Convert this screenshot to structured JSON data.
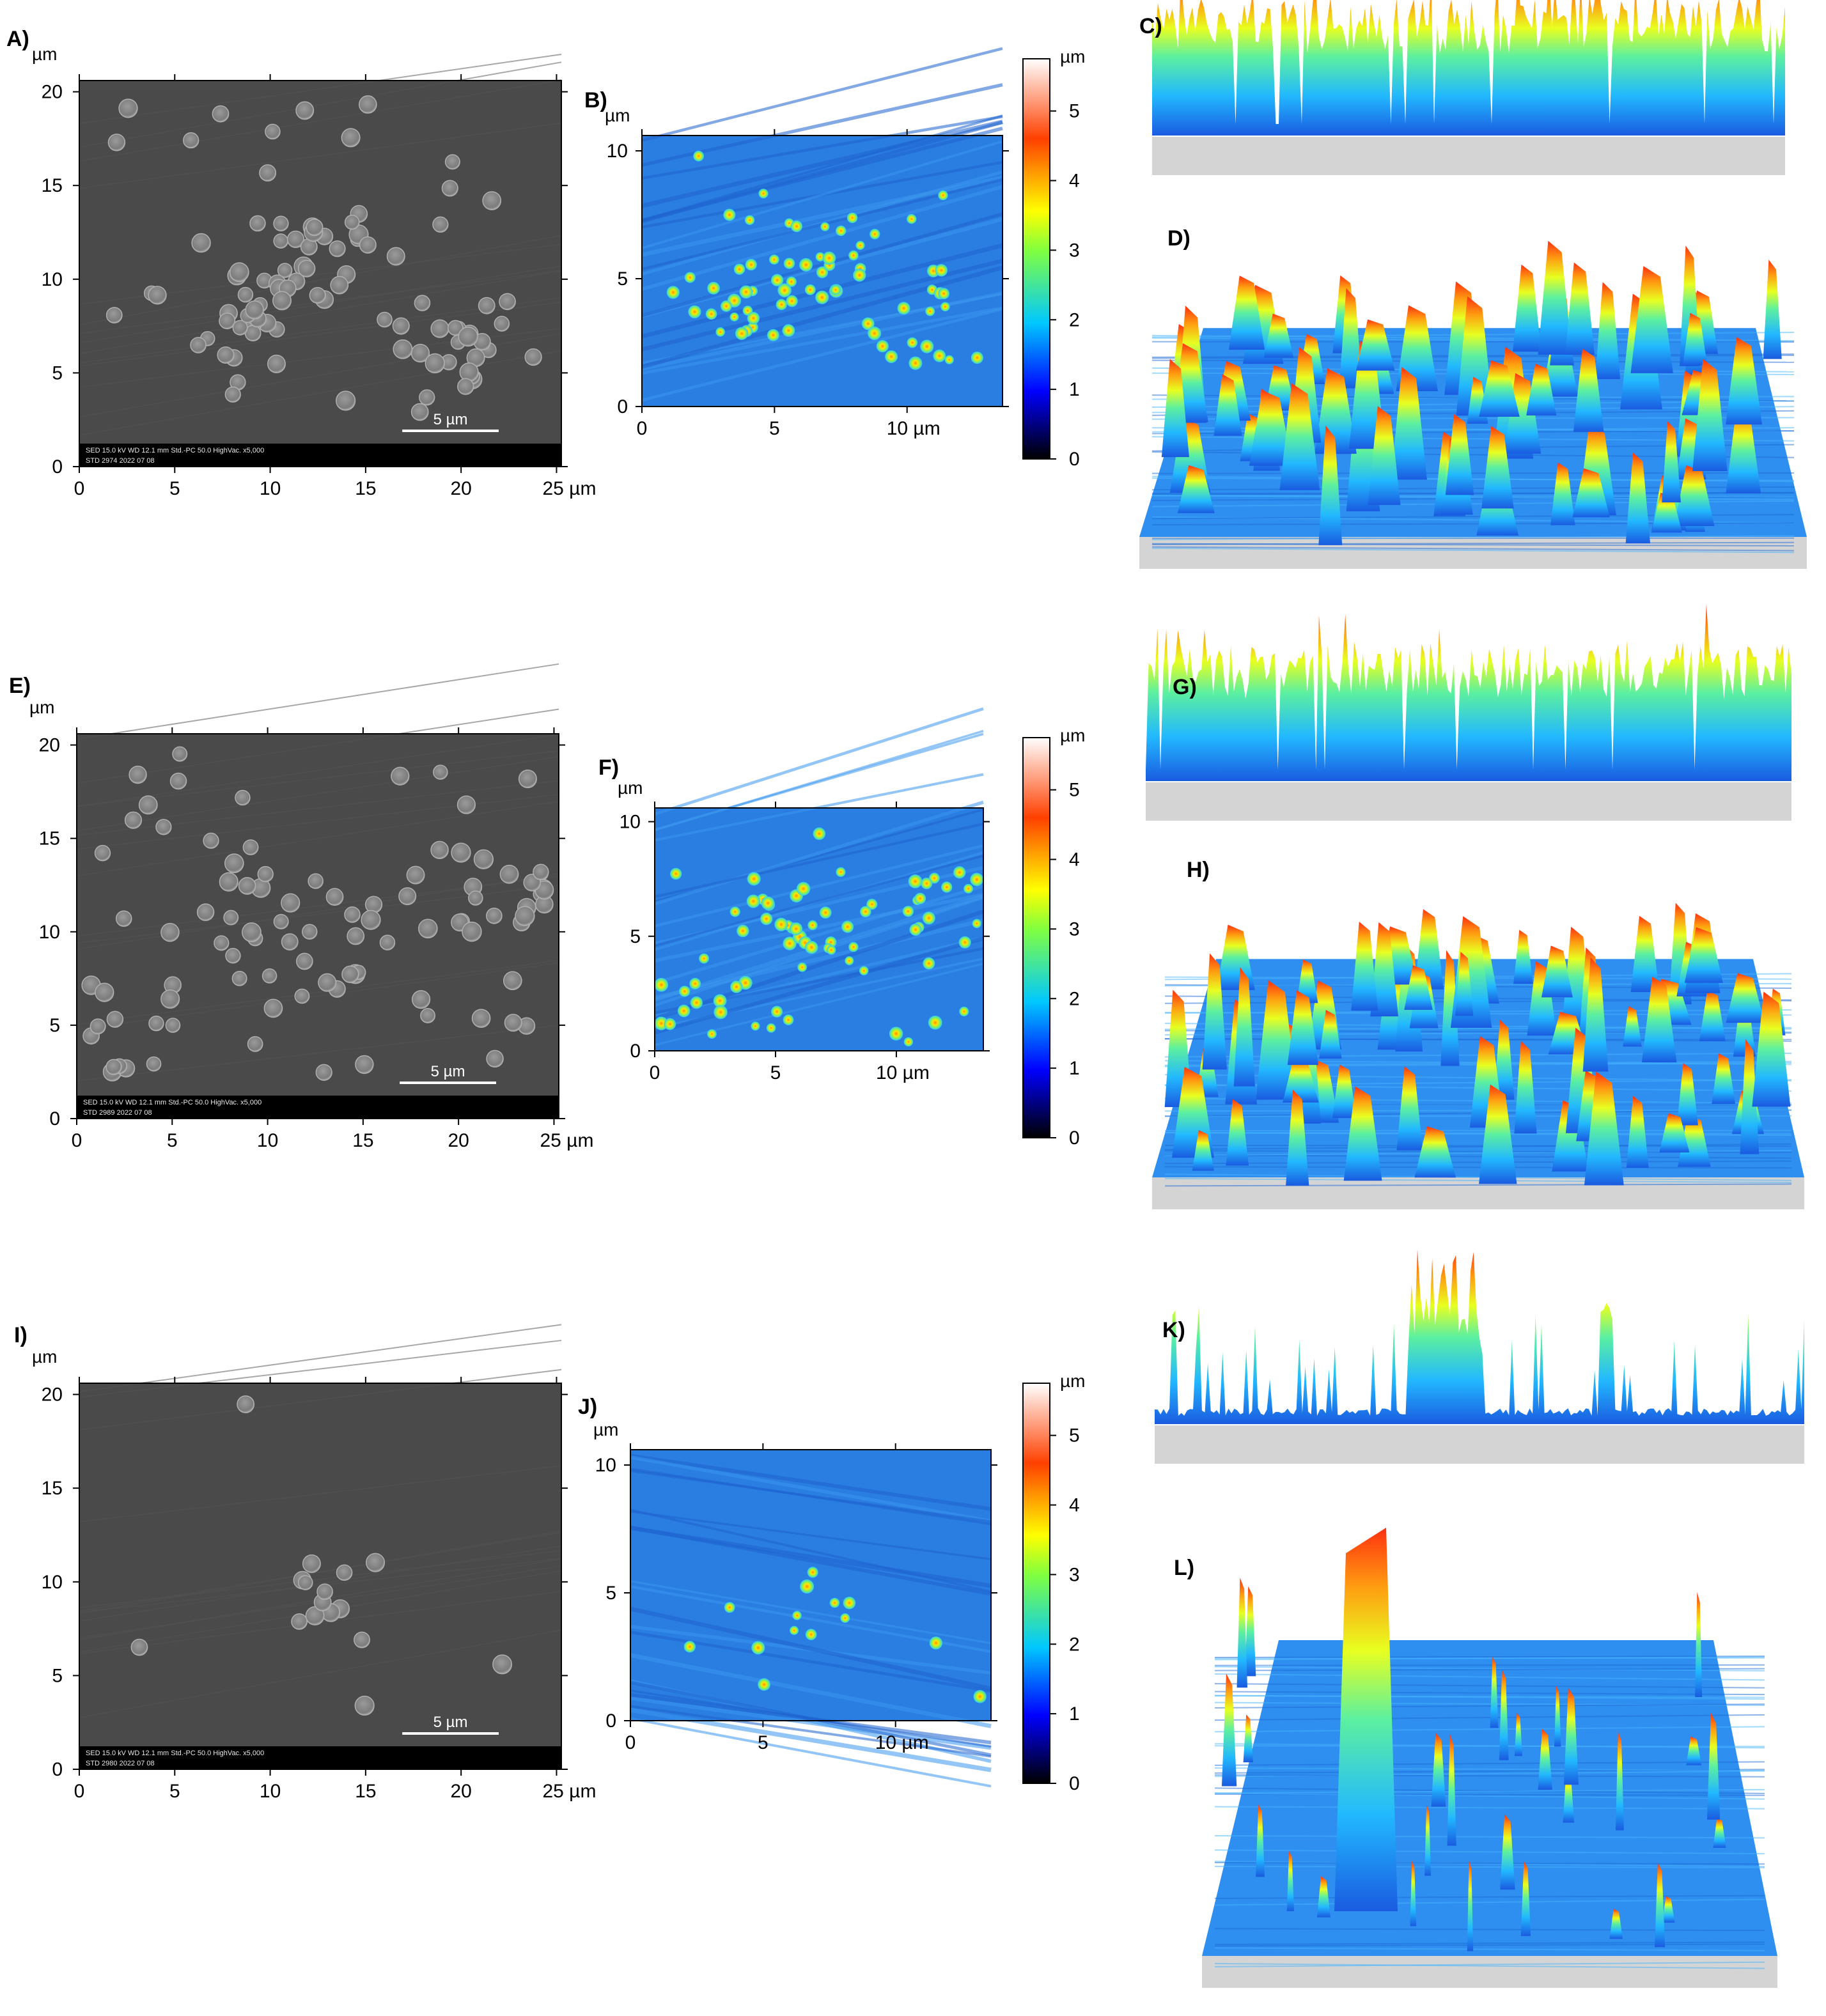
{
  "colors": {
    "sem_background": "#4a4a4a",
    "sem_particle": "#8a8a8a",
    "afm_base": "#2a7de1",
    "colormap": [
      "#000000",
      "#0000ff",
      "#00c8ff",
      "#ffff00",
      "#ff4000",
      "#ffffff"
    ],
    "base_plate": "#d4d4d4"
  },
  "colorbar": {
    "unit": "µm",
    "ticks": [
      "0",
      "1",
      "2",
      "3",
      "4",
      "5"
    ]
  },
  "sem_axes": {
    "unit": "µm",
    "x_ticks": [
      "0",
      "5",
      "10",
      "15",
      "20",
      "25 µm"
    ],
    "y_ticks": [
      "0",
      "5",
      "10",
      "15",
      "20"
    ],
    "scalebar": "5 µm"
  },
  "afm_axes": {
    "unit": "µm",
    "x_ticks": [
      "0",
      "5",
      "10 µm"
    ],
    "y_ticks": [
      "0",
      "5",
      "10"
    ]
  },
  "rows": [
    {
      "sem_label": "A)",
      "afm_label": "B)",
      "profile_label": "C)",
      "surface_label": "D)",
      "sem_meta": [
        "SED  15.0 kV  WD 12.1 mm   Std.-PC 50.0   HighVac.  x5,000",
        "STD  2974     2022 07 08"
      ],
      "particle_density": "high"
    },
    {
      "sem_label": "E)",
      "afm_label": "F)",
      "profile_label": "G)",
      "surface_label": "H)",
      "sem_meta": [
        "SED  15.0 kV  WD 12.1 mm   Std.-PC 50.0   HighVac.  x5,000",
        "STD  2989     2022 07 08"
      ],
      "particle_density": "high"
    },
    {
      "sem_label": "I)",
      "afm_label": "J)",
      "profile_label": "K)",
      "surface_label": "L)",
      "sem_meta": [
        "SED  15.0 kV  WD 12.1 mm   Std.-PC 50.0   HighVac.  x5,000",
        "STD  2980     2022 07 08"
      ],
      "particle_density": "low"
    }
  ]
}
